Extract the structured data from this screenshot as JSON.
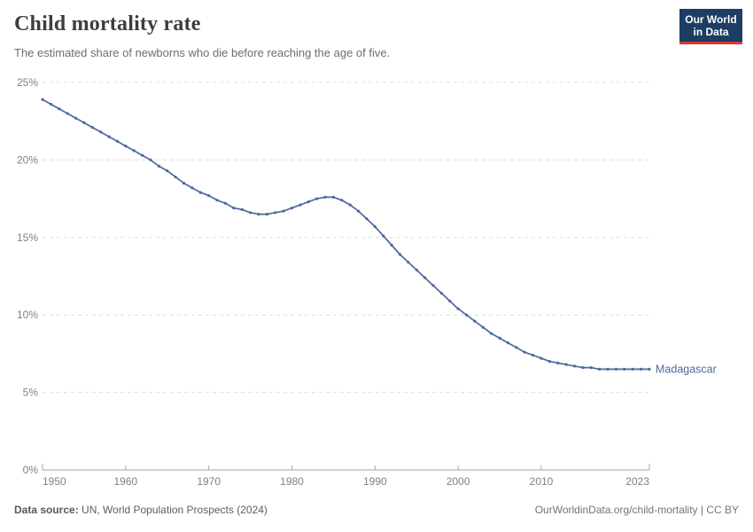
{
  "header": {
    "title": "Child mortality rate",
    "subtitle": "The estimated share of newborns who die before reaching the age of five.",
    "logo": {
      "line1": "Our World",
      "line2": "in Data"
    }
  },
  "chart_data": {
    "type": "line",
    "title": "Child mortality rate",
    "xlabel": "",
    "ylabel": "",
    "xlim": [
      1950,
      2023
    ],
    "ylim": [
      0,
      25
    ],
    "x_ticks": [
      1950,
      1960,
      1970,
      1980,
      1990,
      2000,
      2010,
      2023
    ],
    "y_ticks": [
      0,
      5,
      10,
      15,
      20,
      25
    ],
    "y_tick_suffix": "%",
    "grid": "horizontal-dashed",
    "legend_position": "end-of-line-label",
    "series": [
      {
        "name": "Madagascar",
        "color": "#4c6a9c",
        "marker": "dot",
        "x": [
          1950,
          1951,
          1952,
          1953,
          1954,
          1955,
          1956,
          1957,
          1958,
          1959,
          1960,
          1961,
          1962,
          1963,
          1964,
          1965,
          1966,
          1967,
          1968,
          1969,
          1970,
          1971,
          1972,
          1973,
          1974,
          1975,
          1976,
          1977,
          1978,
          1979,
          1980,
          1981,
          1982,
          1983,
          1984,
          1985,
          1986,
          1987,
          1988,
          1989,
          1990,
          1991,
          1992,
          1993,
          1994,
          1995,
          1996,
          1997,
          1998,
          1999,
          2000,
          2001,
          2002,
          2003,
          2004,
          2005,
          2006,
          2007,
          2008,
          2009,
          2010,
          2011,
          2012,
          2013,
          2014,
          2015,
          2016,
          2017,
          2018,
          2019,
          2020,
          2021,
          2022,
          2023
        ],
        "values": [
          23.9,
          23.6,
          23.3,
          23.0,
          22.7,
          22.4,
          22.1,
          21.8,
          21.5,
          21.2,
          20.9,
          20.6,
          20.3,
          20.0,
          19.6,
          19.3,
          18.9,
          18.5,
          18.2,
          17.9,
          17.7,
          17.4,
          17.2,
          16.9,
          16.8,
          16.6,
          16.5,
          16.5,
          16.6,
          16.7,
          16.9,
          17.1,
          17.3,
          17.5,
          17.6,
          17.6,
          17.4,
          17.1,
          16.7,
          16.2,
          15.7,
          15.1,
          14.5,
          13.9,
          13.4,
          12.9,
          12.4,
          11.9,
          11.4,
          10.9,
          10.4,
          10.0,
          9.6,
          9.2,
          8.8,
          8.5,
          8.2,
          7.9,
          7.6,
          7.4,
          7.2,
          7.0,
          6.9,
          6.8,
          6.7,
          6.6,
          6.6,
          6.5,
          6.5,
          6.5,
          6.5,
          6.5,
          6.5,
          6.5
        ]
      }
    ]
  },
  "footer": {
    "source_label": "Data source:",
    "source_text": " UN, World Population Prospects (2024)",
    "link_text": "OurWorldinData.org/child-mortality | CC BY"
  },
  "colors": {
    "series_blue": "#4c6a9c",
    "grid": "#dedede",
    "axis": "#a6a6a6",
    "tick_text": "#808080",
    "logo_navy": "#1d3d63",
    "logo_red": "#d93a2b",
    "title_text": "#3d3d3d",
    "subtitle_text": "#6e6e6e"
  }
}
